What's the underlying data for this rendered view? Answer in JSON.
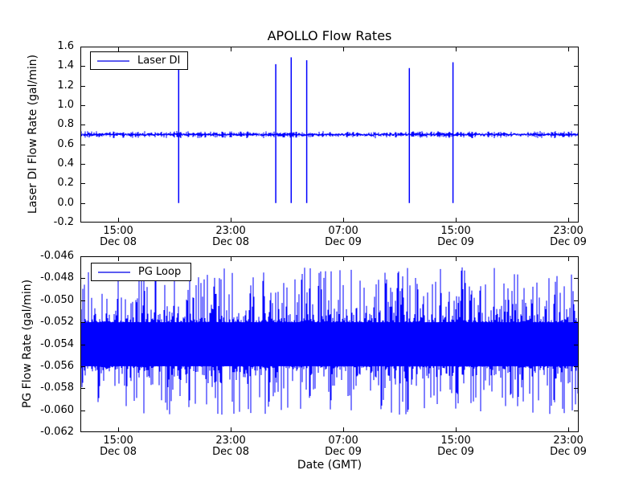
{
  "figure": {
    "background": "#ffffff",
    "axes_line_color": "#000000"
  },
  "chart_data": [
    {
      "type": "line",
      "title": "APOLLO Flow Rates",
      "ylabel": "Laser DI Flow Rate (gal/min)",
      "legend": "Laser DI",
      "legend_position": "upper left",
      "line_color": "#0000ff",
      "grid": false,
      "xlim_hours": [
        12.31,
        47.74
      ],
      "ylim": [
        -0.2,
        1.6
      ],
      "ytick_values": [
        1.6,
        1.4,
        1.2,
        1.0,
        0.8,
        0.6,
        0.4,
        0.2,
        0.0,
        -0.2
      ],
      "ytick_labels": [
        "1.6",
        "1.4",
        "1.2",
        "1.0",
        "0.8",
        "0.6",
        "0.4",
        "0.2",
        "0.0",
        "-0.2"
      ],
      "xticks": [
        {
          "hours": 15,
          "time": "15:00",
          "date": "Dec 08"
        },
        {
          "hours": 23,
          "time": "23:00",
          "date": "Dec 08"
        },
        {
          "hours": 31,
          "time": "07:00",
          "date": "Dec 09"
        },
        {
          "hours": 39,
          "time": "15:00",
          "date": "Dec 09"
        },
        {
          "hours": 47,
          "time": "23:00",
          "date": "Dec 09"
        }
      ],
      "series": {
        "name": "Laser DI",
        "baseline": 0.7,
        "noise_band": [
          0.68,
          0.72
        ],
        "spikes": [
          {
            "t_hours": 19.3,
            "peak": 1.43,
            "trough": 0.0
          },
          {
            "t_hours": 26.2,
            "peak": 1.42,
            "trough": 0.0
          },
          {
            "t_hours": 27.3,
            "peak": 1.49,
            "trough": 0.0
          },
          {
            "t_hours": 28.4,
            "peak": 1.46,
            "trough": 0.0
          },
          {
            "t_hours": 35.7,
            "peak": 1.38,
            "trough": 0.0
          },
          {
            "t_hours": 38.8,
            "peak": 1.44,
            "trough": 0.0
          }
        ]
      }
    },
    {
      "type": "line",
      "ylabel": "PG Flow Rate (gal/min)",
      "xlabel": "Date (GMT)",
      "legend": "PG Loop",
      "legend_position": "upper left",
      "line_color": "#0000ff",
      "grid": false,
      "xlim_hours": [
        12.31,
        47.74
      ],
      "ylim": [
        -0.062,
        -0.046
      ],
      "ytick_values": [
        -0.046,
        -0.048,
        -0.05,
        -0.052,
        -0.054,
        -0.056,
        -0.058,
        -0.06,
        -0.062
      ],
      "ytick_labels": [
        "-0.046",
        "-0.048",
        "-0.050",
        "-0.052",
        "-0.054",
        "-0.056",
        "-0.058",
        "-0.060",
        "-0.062"
      ],
      "xticks": [
        {
          "hours": 15,
          "time": "15:00",
          "date": "Dec 08"
        },
        {
          "hours": 23,
          "time": "23:00",
          "date": "Dec 08"
        },
        {
          "hours": 31,
          "time": "07:00",
          "date": "Dec 09"
        },
        {
          "hours": 39,
          "time": "15:00",
          "date": "Dec 09"
        },
        {
          "hours": 47,
          "time": "23:00",
          "date": "Dec 09"
        }
      ],
      "series": {
        "name": "PG Loop",
        "mean": -0.054,
        "core_band": [
          -0.056,
          -0.052
        ],
        "spike_max": -0.047,
        "spike_min": -0.0605
      }
    }
  ]
}
